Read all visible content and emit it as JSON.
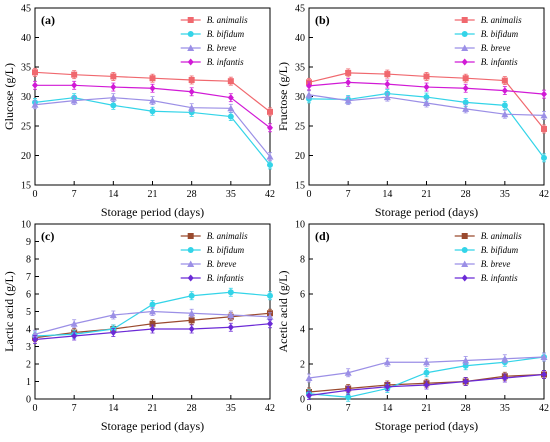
{
  "chart_data": [
    {
      "type": "line",
      "panel_label": "(a)",
      "xlabel": "Storage period (days)",
      "ylabel": "Glucose (g/L)",
      "x": [
        0,
        7,
        14,
        21,
        28,
        35,
        42
      ],
      "xticks": [
        "0",
        "7",
        "14",
        "21",
        "28",
        "35",
        "42"
      ],
      "xlim": [
        0,
        42
      ],
      "ylim": [
        15,
        45
      ],
      "yticks": [
        "15",
        "20",
        "25",
        "30",
        "35",
        "40",
        "45"
      ],
      "legend_position": "top-right",
      "series": [
        {
          "name": "B. animalis",
          "color": "#f0686e",
          "marker": "square",
          "values": [
            34.1,
            33.7,
            33.4,
            33.1,
            32.8,
            32.6,
            27.4
          ]
        },
        {
          "name": "B. bifidum",
          "color": "#33d4e8",
          "marker": "circle",
          "values": [
            29.0,
            29.8,
            28.5,
            27.5,
            27.3,
            26.6,
            18.4
          ]
        },
        {
          "name": "B. breve",
          "color": "#9b8fe6",
          "marker": "triangle",
          "values": [
            28.6,
            29.3,
            29.8,
            29.3,
            28.1,
            28.0,
            19.8
          ]
        },
        {
          "name": "B. infantis",
          "color": "#d11ad6",
          "marker": "diamond",
          "values": [
            31.9,
            31.9,
            31.6,
            31.4,
            30.8,
            29.8,
            24.7
          ]
        }
      ]
    },
    {
      "type": "line",
      "panel_label": "(b)",
      "xlabel": "Storage period (days)",
      "ylabel": "Fructose (g/L)",
      "x": [
        0,
        7,
        14,
        21,
        28,
        35,
        42
      ],
      "xticks": [
        "0",
        "7",
        "14",
        "21",
        "28",
        "35",
        "42"
      ],
      "xlim": [
        0,
        42
      ],
      "ylim": [
        15,
        45
      ],
      "yticks": [
        "15",
        "20",
        "25",
        "30",
        "35",
        "40",
        "45"
      ],
      "legend_position": "top-right",
      "series": [
        {
          "name": "B. animalis",
          "color": "#f0686e",
          "marker": "square",
          "values": [
            32.4,
            34.0,
            33.8,
            33.4,
            33.1,
            32.7,
            24.5
          ]
        },
        {
          "name": "B. bifidum",
          "color": "#33d4e8",
          "marker": "circle",
          "values": [
            29.6,
            29.5,
            30.5,
            29.9,
            29.0,
            28.5,
            19.6
          ]
        },
        {
          "name": "B. breve",
          "color": "#9b8fe6",
          "marker": "triangle",
          "values": [
            30.3,
            29.3,
            29.9,
            28.9,
            27.9,
            27.0,
            26.8
          ]
        },
        {
          "name": "B. infantis",
          "color": "#d11ad6",
          "marker": "diamond",
          "values": [
            31.8,
            32.4,
            32.1,
            31.6,
            31.4,
            31.0,
            30.4
          ]
        }
      ]
    },
    {
      "type": "line",
      "panel_label": "(c)",
      "xlabel": "Storage period (days)",
      "ylabel": "Lactic acid (g/L)",
      "x": [
        0,
        7,
        14,
        21,
        28,
        35,
        42
      ],
      "xticks": [
        "0",
        "7",
        "14",
        "21",
        "28",
        "35",
        "42"
      ],
      "xlim": [
        0,
        42
      ],
      "ylim": [
        0,
        10
      ],
      "yticks": [
        "0",
        "1",
        "2",
        "3",
        "4",
        "5",
        "6",
        "7",
        "8",
        "9",
        "10"
      ],
      "legend_position": "top-right",
      "series": [
        {
          "name": "B. animalis",
          "color": "#9a4a2e",
          "marker": "square",
          "values": [
            3.5,
            3.8,
            4.0,
            4.3,
            4.5,
            4.7,
            4.9
          ]
        },
        {
          "name": "B. bifidum",
          "color": "#33d4e8",
          "marker": "circle",
          "values": [
            3.6,
            3.7,
            4.0,
            5.4,
            5.9,
            6.1,
            5.9
          ]
        },
        {
          "name": "B. breve",
          "color": "#9b8fe6",
          "marker": "triangle",
          "values": [
            3.7,
            4.3,
            4.8,
            5.0,
            4.9,
            4.8,
            4.7
          ]
        },
        {
          "name": "B. infantis",
          "color": "#6b2ad6",
          "marker": "diamond",
          "values": [
            3.4,
            3.6,
            3.8,
            4.0,
            4.0,
            4.1,
            4.3
          ]
        }
      ]
    },
    {
      "type": "line",
      "panel_label": "(d)",
      "xlabel": "Storage period (days)",
      "ylabel": "Acetic acid (g/L)",
      "x": [
        0,
        7,
        14,
        21,
        28,
        35,
        42
      ],
      "xticks": [
        "0",
        "7",
        "14",
        "21",
        "28",
        "35",
        "42"
      ],
      "xlim": [
        0,
        42
      ],
      "ylim": [
        0,
        10
      ],
      "yticks": [
        "0",
        "2",
        "4",
        "6",
        "8",
        "10"
      ],
      "legend_position": "top-right",
      "series": [
        {
          "name": "B. animalis",
          "color": "#9a4a2e",
          "marker": "square",
          "values": [
            0.4,
            0.6,
            0.8,
            0.9,
            1.0,
            1.3,
            1.4
          ]
        },
        {
          "name": "B. bifidum",
          "color": "#33d4e8",
          "marker": "circle",
          "values": [
            0.3,
            0.1,
            0.6,
            1.5,
            1.9,
            2.1,
            2.4
          ]
        },
        {
          "name": "B. breve",
          "color": "#9b8fe6",
          "marker": "triangle",
          "values": [
            1.2,
            1.5,
            2.1,
            2.1,
            2.2,
            2.3,
            2.4
          ]
        },
        {
          "name": "B. infantis",
          "color": "#6b2ad6",
          "marker": "diamond",
          "values": [
            0.2,
            0.5,
            0.7,
            0.8,
            1.0,
            1.2,
            1.4
          ]
        }
      ]
    }
  ]
}
